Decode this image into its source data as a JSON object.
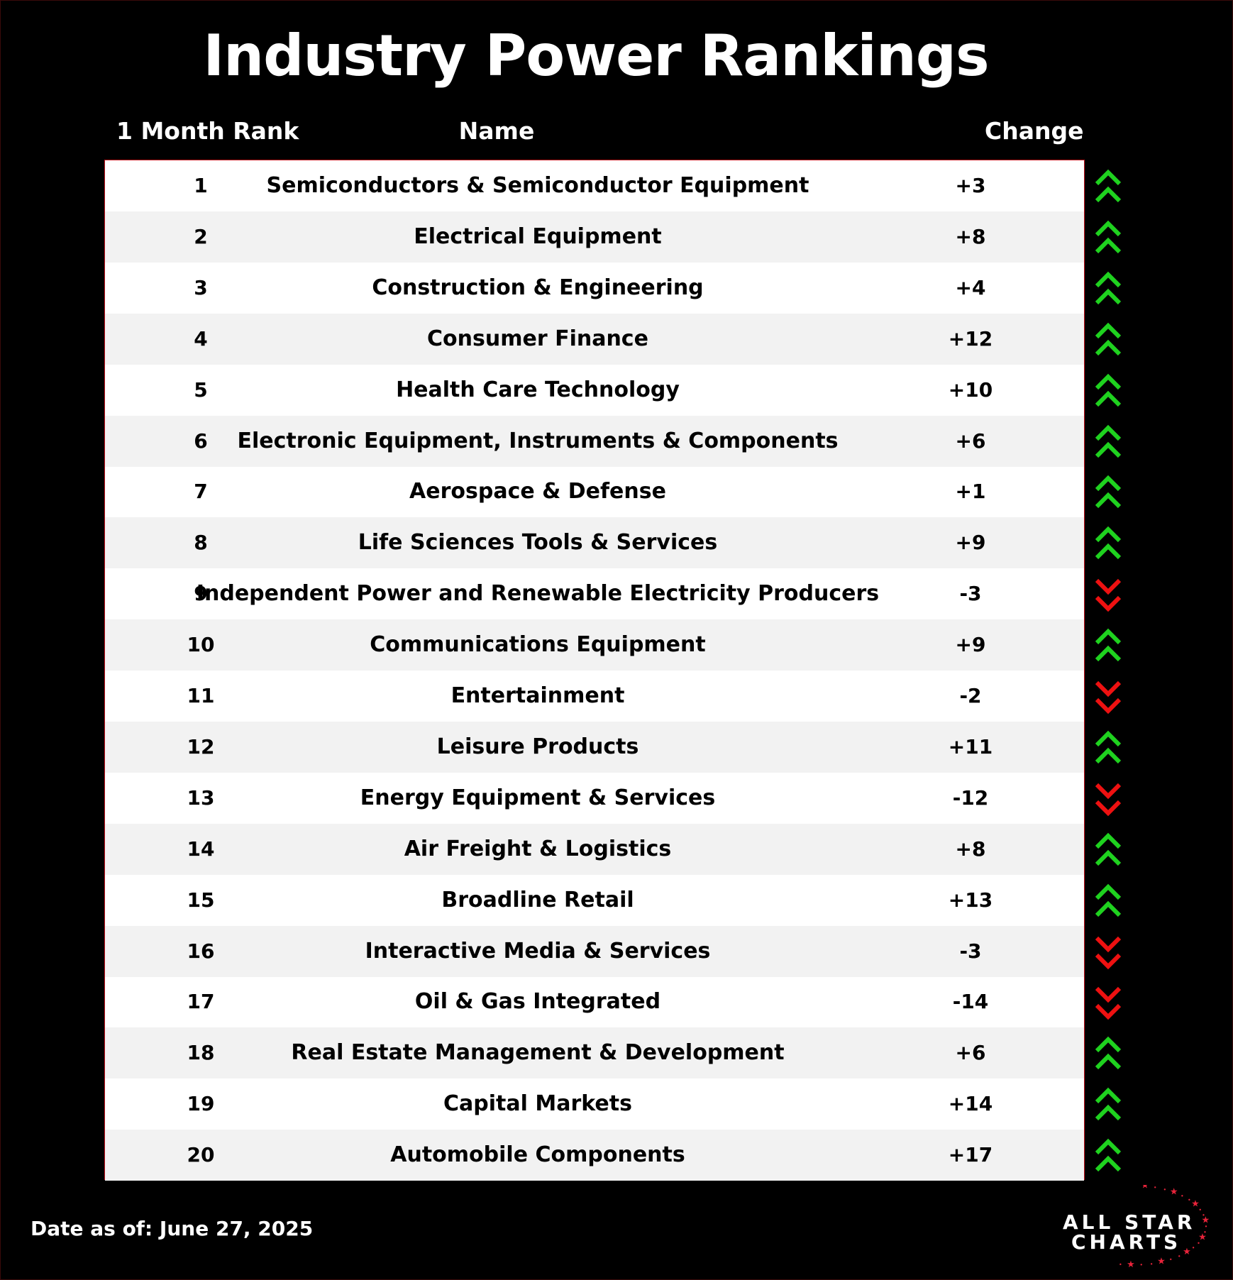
{
  "title": "Industry Power Rankings",
  "headers": {
    "rank": "1 Month Rank",
    "name": "Name",
    "change": "Change"
  },
  "rows": [
    {
      "rank": "1",
      "name": "Semiconductors & Semiconductor Equipment",
      "change": "+3",
      "direction": "up"
    },
    {
      "rank": "2",
      "name": "Electrical Equipment",
      "change": "+8",
      "direction": "up"
    },
    {
      "rank": "3",
      "name": "Construction & Engineering",
      "change": "+4",
      "direction": "up"
    },
    {
      "rank": "4",
      "name": "Consumer Finance",
      "change": "+12",
      "direction": "up"
    },
    {
      "rank": "5",
      "name": "Health Care Technology",
      "change": "+10",
      "direction": "up"
    },
    {
      "rank": "6",
      "name": "Electronic Equipment, Instruments & Components",
      "change": "+6",
      "direction": "up"
    },
    {
      "rank": "7",
      "name": "Aerospace & Defense",
      "change": "+1",
      "direction": "up"
    },
    {
      "rank": "8",
      "name": "Life Sciences Tools & Services",
      "change": "+9",
      "direction": "up"
    },
    {
      "rank": "9",
      "name": "Independent Power and Renewable Electricity Producers",
      "change": "-3",
      "direction": "down"
    },
    {
      "rank": "10",
      "name": "Communications Equipment",
      "change": "+9",
      "direction": "up"
    },
    {
      "rank": "11",
      "name": "Entertainment",
      "change": "-2",
      "direction": "down"
    },
    {
      "rank": "12",
      "name": "Leisure Products",
      "change": "+11",
      "direction": "up"
    },
    {
      "rank": "13",
      "name": "Energy Equipment & Services",
      "change": "-12",
      "direction": "down"
    },
    {
      "rank": "14",
      "name": "Air Freight & Logistics",
      "change": "+8",
      "direction": "up"
    },
    {
      "rank": "15",
      "name": "Broadline Retail",
      "change": "+13",
      "direction": "up"
    },
    {
      "rank": "16",
      "name": "Interactive Media & Services",
      "change": "-3",
      "direction": "down"
    },
    {
      "rank": "17",
      "name": "Oil & Gas Integrated",
      "change": "-14",
      "direction": "down"
    },
    {
      "rank": "18",
      "name": "Real Estate Management & Development",
      "change": "+6",
      "direction": "up"
    },
    {
      "rank": "19",
      "name": "Capital Markets",
      "change": "+14",
      "direction": "up"
    },
    {
      "rank": "20",
      "name": "Automobile Components",
      "change": "+17",
      "direction": "up"
    }
  ],
  "footer": {
    "date_label": "Date as of: June 27, 2025"
  },
  "logo": {
    "line1": "ALL STAR",
    "line2": "CHARTS"
  },
  "colors": {
    "up": "#1fd21f",
    "down": "#ee1111",
    "border": "#c0121d",
    "row_alt": "#f2f2f2",
    "background": "#000000"
  },
  "icons": {
    "up": "double-chevron-up-icon",
    "down": "double-chevron-down-icon",
    "logo_stars": "star-icon"
  }
}
